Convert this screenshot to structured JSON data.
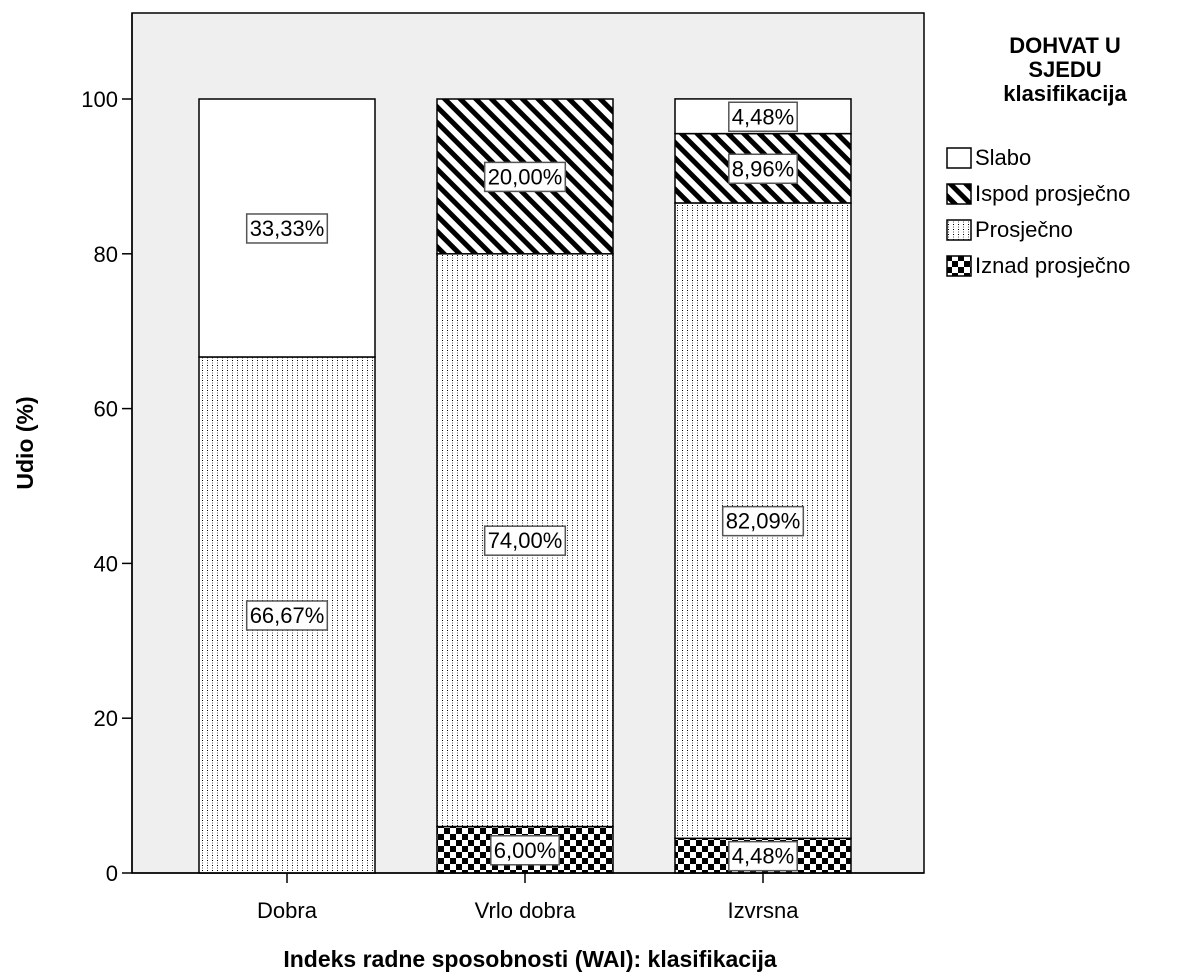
{
  "colors": {
    "background": "#ffffff",
    "plot_area": "#efefef",
    "bar_stroke": "#000000",
    "fill": "#ffffff"
  },
  "chart_data": {
    "type": "bar",
    "stacked": true,
    "categories": [
      "Dobra",
      "Vrlo dobra",
      "Izvrsna"
    ],
    "series": [
      {
        "name": "Iznad prosječno",
        "pattern": "checker",
        "values": [
          0,
          6.0,
          4.48
        ],
        "labels": [
          "",
          "6,00%",
          "4,48%"
        ]
      },
      {
        "name": "Prosječno",
        "pattern": "dots",
        "values": [
          66.67,
          74.0,
          82.09
        ],
        "labels": [
          "66,67%",
          "74,00%",
          "82,09%"
        ]
      },
      {
        "name": "Ispod prosječno",
        "pattern": "diagonal",
        "values": [
          0,
          20.0,
          8.96
        ],
        "labels": [
          "",
          "20,00%",
          "8,96%"
        ]
      },
      {
        "name": "Slabo",
        "pattern": "none",
        "values": [
          33.33,
          0,
          4.48
        ],
        "labels": [
          "33,33%",
          "",
          "4,48%"
        ]
      }
    ],
    "xlabel": "Indeks radne sposobnosti (WAI): klasifikacija",
    "ylabel": "Udio (%)",
    "ylim": [
      0,
      100
    ],
    "yticks": [
      0,
      20,
      40,
      60,
      80,
      100
    ],
    "grid": false,
    "legend": {
      "title_lines": [
        "DOHVAT U",
        "SJEDU",
        "klasifikacija"
      ],
      "placement": "right",
      "items": [
        {
          "label": "Slabo",
          "pattern": "none"
        },
        {
          "label": "Ispod prosječno",
          "pattern": "diagonal"
        },
        {
          "label": "Prosječno",
          "pattern": "dots"
        },
        {
          "label": "Iznad prosječno",
          "pattern": "checker"
        }
      ]
    }
  }
}
